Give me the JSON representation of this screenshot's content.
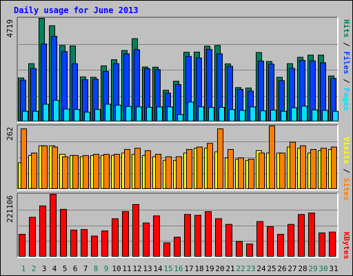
{
  "title": "Daily usage for June 2013",
  "colors": {
    "hits": "#00805C",
    "files": "#0040FF",
    "pages": "#00E0FF",
    "visits": "#FFFF00",
    "sites": "#FF8000",
    "kbytes": "#FF0000",
    "weekend_day": "#00805C",
    "weekday_day": "#000000"
  },
  "chart_data": [
    {
      "type": "bar",
      "panel": "hits-files-pages",
      "categories": [
        "1",
        "2",
        "3",
        "4",
        "5",
        "6",
        "7",
        "8",
        "9",
        "10",
        "11",
        "12",
        "13",
        "14",
        "15",
        "16",
        "17",
        "18",
        "19",
        "20",
        "21",
        "22",
        "23",
        "24",
        "25",
        "26",
        "27",
        "28",
        "29",
        "30",
        "31"
      ],
      "y_axis_max_label": "4719",
      "ylim": [
        0,
        4719
      ],
      "grid": true,
      "series": [
        {
          "name": "Hits",
          "values": [
            2000,
            2650,
            4719,
            4380,
            3480,
            3460,
            2050,
            2030,
            2550,
            2830,
            3250,
            3790,
            2500,
            2490,
            1440,
            1850,
            3170,
            3180,
            3450,
            3480,
            2640,
            1560,
            1540,
            3160,
            2750,
            2030,
            2650,
            2940,
            3040,
            3040,
            2090
          ]
        },
        {
          "name": "Files",
          "values": [
            1900,
            2430,
            3550,
            3900,
            3200,
            2650,
            1920,
            1940,
            2300,
            2650,
            3100,
            3290,
            2420,
            2380,
            1310,
            1700,
            2980,
            2910,
            3300,
            3100,
            2530,
            1480,
            1400,
            2770,
            2630,
            1880,
            2440,
            2800,
            2780,
            2690,
            1980
          ]
        },
        {
          "name": "Pages",
          "values": [
            480,
            480,
            800,
            980,
            580,
            560,
            440,
            560,
            800,
            760,
            700,
            680,
            660,
            680,
            680,
            330,
            900,
            680,
            650,
            660,
            560,
            520,
            680,
            500,
            530,
            480,
            640,
            710,
            540,
            520,
            480
          ]
        }
      ],
      "right_label": [
        "Pages",
        "Files",
        "Hits"
      ]
    },
    {
      "type": "bar",
      "panel": "visits-sites",
      "categories": [
        "1",
        "2",
        "3",
        "4",
        "5",
        "6",
        "7",
        "8",
        "9",
        "10",
        "11",
        "12",
        "13",
        "14",
        "15",
        "16",
        "17",
        "18",
        "19",
        "20",
        "21",
        "22",
        "23",
        "24",
        "25",
        "26",
        "27",
        "28",
        "29",
        "30",
        "31"
      ],
      "y_axis_max_label": "262",
      "ylim": [
        0,
        262
      ],
      "grid": true,
      "series": [
        {
          "name": "Visits",
          "values": [
            110,
            140,
            180,
            180,
            145,
            140,
            135,
            140,
            140,
            140,
            150,
            145,
            140,
            135,
            120,
            120,
            150,
            170,
            170,
            155,
            130,
            125,
            120,
            160,
            150,
            150,
            175,
            170,
            150,
            160,
            165
          ]
        },
        {
          "name": "Sites",
          "values": [
            250,
            150,
            180,
            175,
            135,
            140,
            140,
            145,
            145,
            145,
            165,
            170,
            160,
            145,
            135,
            135,
            165,
            175,
            190,
            250,
            165,
            130,
            125,
            150,
            262,
            150,
            195,
            180,
            165,
            170,
            175
          ]
        }
      ],
      "right_label": [
        "Sites",
        "Visits"
      ]
    },
    {
      "type": "bar",
      "panel": "kbytes",
      "categories": [
        "1",
        "2",
        "3",
        "4",
        "5",
        "6",
        "7",
        "8",
        "9",
        "10",
        "11",
        "12",
        "13",
        "14",
        "15",
        "16",
        "17",
        "18",
        "19",
        "20",
        "21",
        "22",
        "23",
        "24",
        "25",
        "26",
        "27",
        "28",
        "29",
        "30",
        "31"
      ],
      "y_axis_max_label": "221106",
      "ylim": [
        0,
        221106
      ],
      "grid": true,
      "series": [
        {
          "name": "KBytes",
          "values": [
            80000,
            140000,
            180000,
            221106,
            168000,
            95000,
            97000,
            74000,
            92000,
            135000,
            160000,
            185000,
            120000,
            145000,
            50000,
            70000,
            150000,
            147000,
            160000,
            135000,
            115000,
            55000,
            46000,
            125000,
            107000,
            80000,
            115000,
            150000,
            155000,
            85000,
            88000
          ]
        }
      ],
      "right_label": [
        "KBytes"
      ]
    }
  ],
  "x_axis": {
    "labels": [
      "1",
      "2",
      "3",
      "4",
      "5",
      "6",
      "7",
      "8",
      "9",
      "10",
      "11",
      "12",
      "13",
      "14",
      "15",
      "16",
      "17",
      "18",
      "19",
      "20",
      "21",
      "22",
      "23",
      "24",
      "25",
      "26",
      "27",
      "28",
      "29",
      "30",
      "31"
    ],
    "weekend_days": [
      "1",
      "2",
      "8",
      "9",
      "15",
      "16",
      "22",
      "23",
      "29",
      "30"
    ]
  }
}
